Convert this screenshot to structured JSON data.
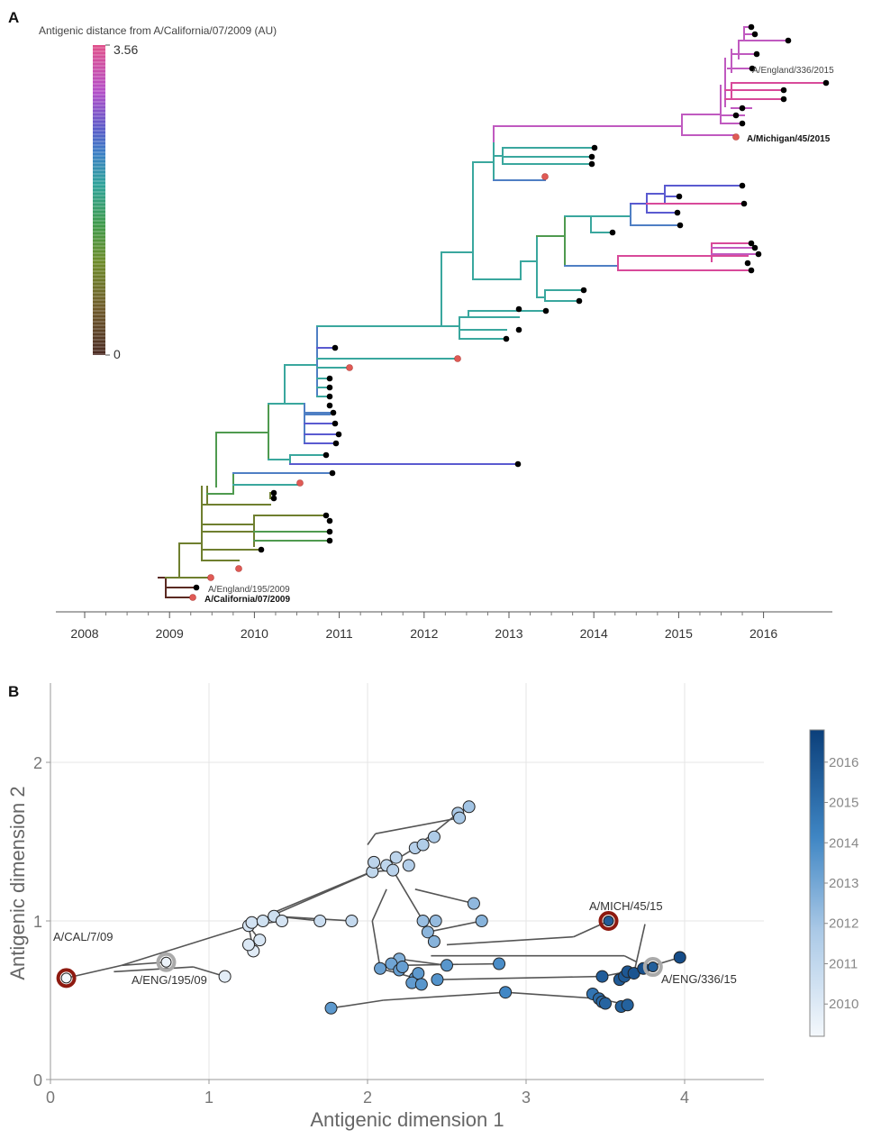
{
  "panels": {
    "a_letter": "A",
    "b_letter": "B"
  },
  "chart_data": [
    {
      "type": "tree",
      "panel": "A",
      "title": "Antigenic distance from A/California/07/2009 (AU)",
      "colorbar": {
        "min_label": "0",
        "max_label": "3.56",
        "min": 0,
        "max": 3.56,
        "colors": [
          "#4a2a22",
          "#6f5a2a",
          "#6e8c2a",
          "#3f9a4a",
          "#2fa29a",
          "#3a7fc4",
          "#5a5ac8",
          "#b44fc8",
          "#e0508a"
        ]
      },
      "xaxis": {
        "ticks": [
          "2008",
          "2009",
          "2010",
          "2011",
          "2012",
          "2013",
          "2014",
          "2015",
          "2016"
        ],
        "range": [
          2008,
          2016.8
        ]
      },
      "labels": {
        "california": "A/California/07/2009",
        "england195": "A/England/195/2009",
        "england336": "A/England/336/2015",
        "michigan": "A/Michigan/45/2015"
      }
    },
    {
      "type": "scatter",
      "panel": "B",
      "xlabel": "Antigenic dimension 1",
      "ylabel": "Antigenic dimension 2",
      "xlim": [
        0,
        4.5
      ],
      "ylim": [
        0,
        2.5
      ],
      "xticks": [
        "0",
        "1",
        "2",
        "3",
        "4"
      ],
      "yticks": [
        "0",
        "1",
        "2"
      ],
      "grid": true,
      "colorbar": {
        "ticks": [
          "2010",
          "2011",
          "2012",
          "2013",
          "2014",
          "2015",
          "2016"
        ],
        "range": [
          2009.2,
          2016.8
        ],
        "low_color": "#f4f8fc",
        "high_color": "#0b3f7a"
      },
      "labels": {
        "cal": "A/CAL/7/09",
        "eng195": "A/ENG/195/09",
        "mich": "A/MICH/45/15",
        "eng336": "A/ENG/336/15"
      },
      "highlight": [
        {
          "name": "A/CAL/7/09",
          "x": 0.1,
          "y": 0.64,
          "ring": "#8e1a10",
          "year": 2009.2
        },
        {
          "name": "A/ENG/195/09",
          "x": 0.73,
          "y": 0.74,
          "ring": "#aaaaaa",
          "year": 2009.5
        },
        {
          "name": "A/MICH/45/15",
          "x": 3.52,
          "y": 1.0,
          "ring": "#8e1a10",
          "year": 2015.7
        },
        {
          "name": "A/ENG/336/15",
          "x": 3.8,
          "y": 0.71,
          "ring": "#aaaaaa",
          "year": 2015.6
        }
      ],
      "points": [
        {
          "x": 1.1,
          "y": 0.65,
          "year": 2009.8
        },
        {
          "x": 1.28,
          "y": 0.81,
          "year": 2009.9
        },
        {
          "x": 1.25,
          "y": 0.85,
          "year": 2010.1
        },
        {
          "x": 1.32,
          "y": 0.88,
          "year": 2010.2
        },
        {
          "x": 1.25,
          "y": 0.97,
          "year": 2010.3
        },
        {
          "x": 1.27,
          "y": 0.99,
          "year": 2010.4
        },
        {
          "x": 1.34,
          "y": 1.0,
          "year": 2010.5
        },
        {
          "x": 1.41,
          "y": 1.03,
          "year": 2010.6
        },
        {
          "x": 1.46,
          "y": 1.0,
          "year": 2010.3
        },
        {
          "x": 1.7,
          "y": 1.0,
          "year": 2010.7
        },
        {
          "x": 1.9,
          "y": 1.0,
          "year": 2010.9
        },
        {
          "x": 2.03,
          "y": 1.31,
          "year": 2011.0
        },
        {
          "x": 2.04,
          "y": 1.37,
          "year": 2011.2
        },
        {
          "x": 2.12,
          "y": 1.35,
          "year": 2011.1
        },
        {
          "x": 2.16,
          "y": 1.32,
          "year": 2011.3
        },
        {
          "x": 2.18,
          "y": 1.4,
          "year": 2011.2
        },
        {
          "x": 2.26,
          "y": 1.35,
          "year": 2011.5
        },
        {
          "x": 2.3,
          "y": 1.46,
          "year": 2011.4
        },
        {
          "x": 2.35,
          "y": 1.48,
          "year": 2011.6
        },
        {
          "x": 2.42,
          "y": 1.53,
          "year": 2011.7
        },
        {
          "x": 2.57,
          "y": 1.68,
          "year": 2011.8
        },
        {
          "x": 2.58,
          "y": 1.65,
          "year": 2011.9
        },
        {
          "x": 2.64,
          "y": 1.72,
          "year": 2012.0
        },
        {
          "x": 2.35,
          "y": 1.0,
          "year": 2012.2
        },
        {
          "x": 2.43,
          "y": 1.0,
          "year": 2012.3
        },
        {
          "x": 2.38,
          "y": 0.93,
          "year": 2012.5
        },
        {
          "x": 2.42,
          "y": 0.87,
          "year": 2012.6
        },
        {
          "x": 2.67,
          "y": 1.11,
          "year": 2012.4
        },
        {
          "x": 2.72,
          "y": 1.0,
          "year": 2012.6
        },
        {
          "x": 2.2,
          "y": 0.76,
          "year": 2012.7
        },
        {
          "x": 2.08,
          "y": 0.7,
          "year": 2013.2
        },
        {
          "x": 2.15,
          "y": 0.73,
          "year": 2013.1
        },
        {
          "x": 2.2,
          "y": 0.69,
          "year": 2013.3
        },
        {
          "x": 2.22,
          "y": 0.71,
          "year": 2013.3
        },
        {
          "x": 2.3,
          "y": 0.64,
          "year": 2013.4
        },
        {
          "x": 2.32,
          "y": 0.67,
          "year": 2013.5
        },
        {
          "x": 2.28,
          "y": 0.61,
          "year": 2013.4
        },
        {
          "x": 2.34,
          "y": 0.6,
          "year": 2013.6
        },
        {
          "x": 2.44,
          "y": 0.63,
          "year": 2013.7
        },
        {
          "x": 2.5,
          "y": 0.72,
          "year": 2013.6
        },
        {
          "x": 1.77,
          "y": 0.45,
          "year": 2013.5
        },
        {
          "x": 2.83,
          "y": 0.73,
          "year": 2013.9
        },
        {
          "x": 2.87,
          "y": 0.55,
          "year": 2014.1
        },
        {
          "x": 3.42,
          "y": 0.54,
          "year": 2014.8
        },
        {
          "x": 3.46,
          "y": 0.51,
          "year": 2015.1
        },
        {
          "x": 3.48,
          "y": 0.49,
          "year": 2015.2
        },
        {
          "x": 3.5,
          "y": 0.48,
          "year": 2015.4
        },
        {
          "x": 3.6,
          "y": 0.46,
          "year": 2015.5
        },
        {
          "x": 3.64,
          "y": 0.47,
          "year": 2015.5
        },
        {
          "x": 3.48,
          "y": 0.65,
          "year": 2015.7
        },
        {
          "x": 3.59,
          "y": 0.63,
          "year": 2015.8
        },
        {
          "x": 3.62,
          "y": 0.65,
          "year": 2015.8
        },
        {
          "x": 3.64,
          "y": 0.68,
          "year": 2015.9
        },
        {
          "x": 3.68,
          "y": 0.67,
          "year": 2016.0
        },
        {
          "x": 3.74,
          "y": 0.7,
          "year": 2016.2
        },
        {
          "x": 3.97,
          "y": 0.77,
          "year": 2016.3
        }
      ],
      "edges": [
        [
          0.1,
          0.64,
          0.45,
          0.72
        ],
        [
          0.45,
          0.72,
          0.73,
          0.74
        ],
        [
          0.45,
          0.72,
          1.25,
          0.97
        ],
        [
          0.4,
          0.68,
          0.9,
          0.71
        ],
        [
          0.9,
          0.71,
          1.1,
          0.65
        ],
        [
          1.25,
          0.97,
          1.28,
          0.81
        ],
        [
          1.25,
          0.97,
          1.32,
          0.88
        ],
        [
          1.25,
          0.97,
          1.46,
          1.0
        ],
        [
          1.3,
          1.0,
          1.41,
          1.03
        ],
        [
          1.41,
          1.03,
          1.9,
          1.0
        ],
        [
          1.41,
          1.03,
          1.7,
          1.0
        ],
        [
          1.25,
          0.97,
          2.03,
          1.31
        ],
        [
          1.4,
          1.05,
          2.12,
          1.35
        ],
        [
          2.03,
          1.31,
          2.16,
          1.32
        ],
        [
          2.12,
          1.35,
          2.3,
          1.46
        ],
        [
          2.3,
          1.46,
          2.42,
          1.53
        ],
        [
          2.3,
          1.46,
          2.57,
          1.68
        ],
        [
          2.57,
          1.68,
          2.64,
          1.72
        ],
        [
          2.0,
          1.48,
          2.05,
          1.55
        ],
        [
          2.05,
          1.55,
          2.58,
          1.65
        ],
        [
          2.16,
          1.32,
          2.35,
          1.0
        ],
        [
          2.3,
          1.2,
          2.67,
          1.11
        ],
        [
          2.35,
          1.0,
          2.43,
          1.0
        ],
        [
          2.38,
          0.93,
          2.72,
          1.0
        ],
        [
          2.35,
          1.0,
          2.42,
          0.87
        ],
        [
          2.12,
          1.2,
          2.03,
          1.0
        ],
        [
          2.03,
          1.0,
          2.08,
          0.7
        ],
        [
          2.08,
          0.7,
          2.2,
          0.76
        ],
        [
          2.08,
          0.7,
          2.3,
          0.64
        ],
        [
          2.2,
          0.76,
          2.5,
          0.72
        ],
        [
          2.2,
          0.72,
          2.83,
          0.73
        ],
        [
          2.1,
          0.5,
          1.77,
          0.45
        ],
        [
          2.1,
          0.5,
          2.87,
          0.55
        ],
        [
          2.87,
          0.55,
          3.46,
          0.51
        ],
        [
          3.46,
          0.51,
          3.64,
          0.47
        ],
        [
          2.44,
          0.63,
          3.48,
          0.65
        ],
        [
          3.48,
          0.65,
          3.74,
          0.7
        ],
        [
          3.74,
          0.7,
          3.97,
          0.77
        ],
        [
          3.74,
          0.7,
          3.8,
          0.71
        ],
        [
          2.5,
          0.85,
          3.3,
          0.9
        ],
        [
          3.3,
          0.9,
          3.52,
          1.0
        ],
        [
          2.4,
          0.78,
          3.62,
          0.78
        ],
        [
          3.62,
          0.78,
          3.7,
          0.74
        ],
        [
          3.75,
          0.98,
          3.68,
          0.67
        ]
      ]
    }
  ]
}
